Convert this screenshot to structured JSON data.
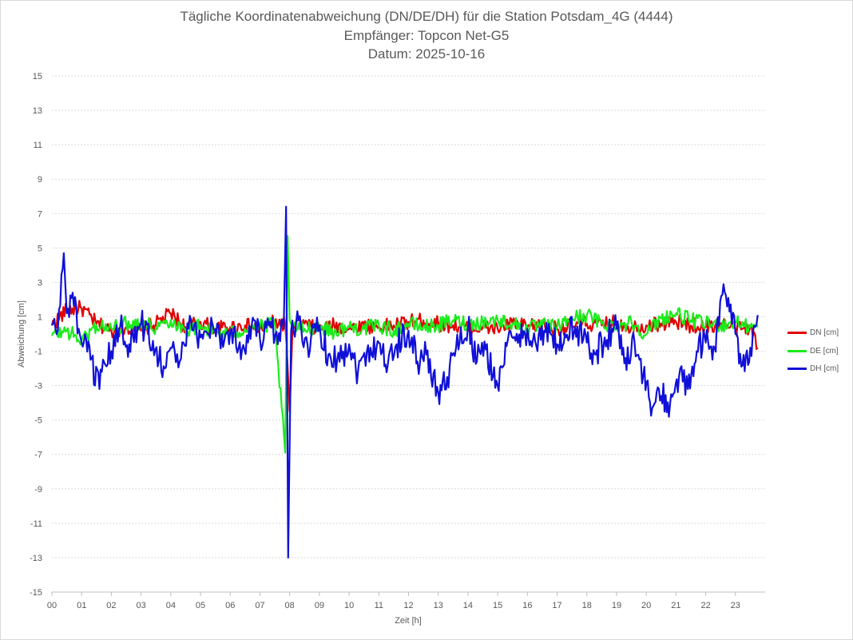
{
  "title": {
    "line1": "Tägliche Koordinatenabweichung (DN/DE/DH) für die Station Potsdam_4G (4444)",
    "line2": "Empfänger: Topcon Net-G5",
    "line3": "Datum: 2025-10-16"
  },
  "chart_data": {
    "type": "line",
    "title": "Tägliche Koordinatenabweichung (DN/DE/DH) für die Station Potsdam_4G (4444)",
    "xlabel": "Zeit [h]",
    "ylabel": "Abweichung [cm]",
    "ylim": [
      -15,
      15
    ],
    "xlim": [
      0,
      24
    ],
    "y_ticks": [
      "15",
      "13",
      "11",
      "9",
      "7",
      "5",
      "3",
      "1",
      "-1",
      "-3",
      "-5",
      "-7",
      "-9",
      "-11",
      "-13",
      "-15"
    ],
    "x_ticks": [
      "00",
      "01",
      "02",
      "03",
      "04",
      "05",
      "06",
      "07",
      "08",
      "09",
      "10",
      "11",
      "12",
      "13",
      "14",
      "15",
      "16",
      "17",
      "18",
      "19",
      "20",
      "21",
      "22",
      "23"
    ],
    "legend": {
      "placement": "right",
      "entries": [
        "DN [cm]",
        "DE [cm]",
        "DH [cm]"
      ]
    },
    "series": [
      {
        "name": "DN [cm]",
        "color": "#e00000",
        "x": [
          0.0,
          0.5,
          1.0,
          1.5,
          2.0,
          2.5,
          3.0,
          3.5,
          4.0,
          4.5,
          5.0,
          5.5,
          6.0,
          6.5,
          7.0,
          7.5,
          7.85,
          7.92,
          8.0,
          8.1,
          8.5,
          9.0,
          9.5,
          10.0,
          10.5,
          11.0,
          11.5,
          12.0,
          12.5,
          13.0,
          13.5,
          14.0,
          14.5,
          15.0,
          15.5,
          16.0,
          16.5,
          17.0,
          17.5,
          18.0,
          18.5,
          19.0,
          19.5,
          20.0,
          20.5,
          21.0,
          21.5,
          22.0,
          22.5,
          23.0,
          23.5,
          23.75
        ],
        "y": [
          0.5,
          1.4,
          1.5,
          0.6,
          0.2,
          0.4,
          0.2,
          0.6,
          1.2,
          0.4,
          0.7,
          0.3,
          0.4,
          0.5,
          0.3,
          0.7,
          0.6,
          -1.5,
          -4.5,
          0.5,
          0.6,
          0.2,
          0.5,
          0.3,
          0.5,
          0.4,
          0.5,
          0.7,
          0.8,
          0.6,
          0.5,
          0.3,
          0.4,
          0.3,
          0.6,
          0.4,
          0.5,
          0.3,
          0.5,
          0.6,
          0.5,
          0.7,
          0.4,
          0.5,
          0.6,
          0.7,
          0.5,
          0.4,
          0.6,
          0.3,
          0.4,
          -0.8
        ]
      },
      {
        "name": "DE [cm]",
        "color": "#1aec1a",
        "x": [
          0.0,
          0.5,
          1.0,
          1.5,
          2.0,
          2.5,
          3.0,
          3.5,
          4.0,
          4.5,
          5.0,
          5.5,
          6.0,
          6.5,
          7.0,
          7.5,
          7.85,
          7.93,
          8.0,
          8.1,
          8.5,
          9.0,
          9.5,
          10.0,
          10.5,
          11.0,
          11.5,
          12.0,
          12.5,
          13.0,
          13.5,
          14.0,
          14.5,
          15.0,
          15.5,
          16.0,
          16.5,
          17.0,
          17.5,
          18.0,
          18.5,
          19.0,
          19.5,
          20.0,
          20.5,
          21.0,
          21.5,
          22.0,
          22.5,
          23.0,
          23.5,
          23.75
        ],
        "y": [
          -0.1,
          0.2,
          -0.4,
          0.5,
          0.3,
          0.6,
          0.7,
          0.4,
          0.8,
          0.2,
          0.5,
          0.1,
          0.0,
          0.3,
          0.4,
          0.6,
          -6.9,
          5.7,
          0.8,
          0.4,
          0.3,
          0.5,
          0.1,
          0.4,
          0.3,
          0.5,
          0.2,
          0.6,
          0.4,
          0.5,
          0.8,
          0.6,
          0.7,
          0.8,
          0.6,
          0.3,
          0.5,
          0.4,
          0.9,
          1.1,
          0.6,
          0.5,
          0.7,
          0.0,
          0.9,
          1.2,
          0.8,
          0.6,
          0.5,
          0.7,
          0.4,
          0.4
        ]
      },
      {
        "name": "DH [cm]",
        "color": "#1010d8",
        "x": [
          0.0,
          0.2,
          0.4,
          0.5,
          0.7,
          0.9,
          1.0,
          1.3,
          1.6,
          1.8,
          2.0,
          2.3,
          2.6,
          3.0,
          3.4,
          3.8,
          4.0,
          4.3,
          4.6,
          5.0,
          5.4,
          5.8,
          6.0,
          6.4,
          6.8,
          7.0,
          7.3,
          7.6,
          7.8,
          7.88,
          7.95,
          8.05,
          8.3,
          8.6,
          9.0,
          9.3,
          9.6,
          10.0,
          10.3,
          10.6,
          11.0,
          11.3,
          11.6,
          12.0,
          12.3,
          12.6,
          13.0,
          13.3,
          13.6,
          14.0,
          14.3,
          14.6,
          15.0,
          15.3,
          15.6,
          16.0,
          16.3,
          16.6,
          17.0,
          17.3,
          17.6,
          18.0,
          18.3,
          18.6,
          19.0,
          19.3,
          19.6,
          19.9,
          20.2,
          20.5,
          20.8,
          21.1,
          21.4,
          21.7,
          22.0,
          22.3,
          22.6,
          22.8,
          23.0,
          23.2,
          23.5,
          23.75
        ],
        "y": [
          0.5,
          0.2,
          4.7,
          1.2,
          2.4,
          0.3,
          -0.5,
          -1.5,
          -3.2,
          -1.8,
          -1.0,
          0.4,
          -0.6,
          0.6,
          -0.4,
          -2.0,
          -0.8,
          -1.6,
          0.3,
          -0.2,
          0.6,
          -0.4,
          0.2,
          -0.9,
          0.8,
          -0.3,
          0.5,
          -0.6,
          0.3,
          7.4,
          -13.0,
          0.2,
          0.8,
          -0.6,
          0.5,
          -1.2,
          -1.5,
          -0.6,
          -2.2,
          -1.0,
          -0.5,
          -1.8,
          -0.6,
          0.2,
          -1.6,
          -1.2,
          -3.4,
          -2.5,
          -0.8,
          0.4,
          -1.6,
          -0.9,
          -3.0,
          -0.7,
          -0.4,
          0.3,
          -0.7,
          0.1,
          -0.6,
          -0.2,
          0.4,
          -0.5,
          -1.2,
          -0.2,
          0.3,
          -1.4,
          -0.4,
          -2.4,
          -4.3,
          -3.6,
          -4.1,
          -2.5,
          -3.2,
          -1.0,
          -0.5,
          -0.8,
          2.9,
          1.3,
          0.0,
          -1.9,
          -0.8,
          1.1
        ]
      }
    ]
  }
}
